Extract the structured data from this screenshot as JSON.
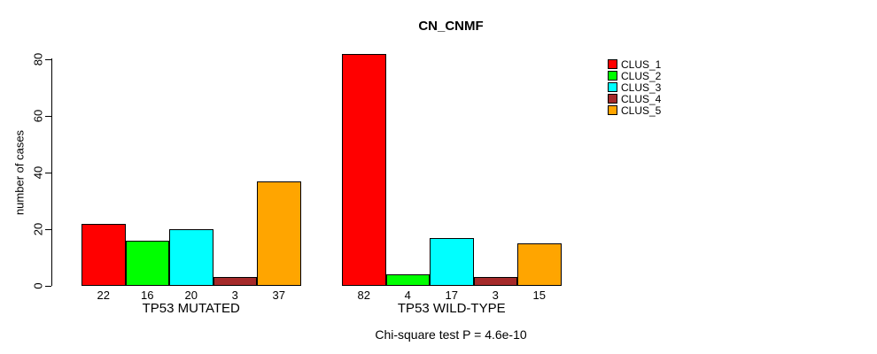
{
  "chart_data": {
    "type": "bar",
    "title": "CN_CNMF",
    "ylabel": "number of cases",
    "xlabel": "",
    "annotation": "Chi-square test P = 4.6e-10",
    "categories": [
      "TP53 MUTATED",
      "TP53 WILD-TYPE"
    ],
    "series": [
      {
        "name": "CLUS_1",
        "color": "#FF0000",
        "values": [
          22,
          82
        ]
      },
      {
        "name": "CLUS_2",
        "color": "#00FF00",
        "values": [
          16,
          4
        ]
      },
      {
        "name": "CLUS_3",
        "color": "#00FFFF",
        "values": [
          20,
          17
        ]
      },
      {
        "name": "CLUS_4",
        "color": "#A52A2A",
        "values": [
          3,
          3
        ]
      },
      {
        "name": "CLUS_5",
        "color": "#FFA500",
        "values": [
          37,
          15
        ]
      }
    ],
    "bar_value_labels": true,
    "yticks": [
      0,
      20,
      40,
      60,
      80
    ],
    "ylim": [
      0,
      84
    ],
    "grid": false,
    "legend_position": "right-top",
    "background": "#ffffff"
  }
}
